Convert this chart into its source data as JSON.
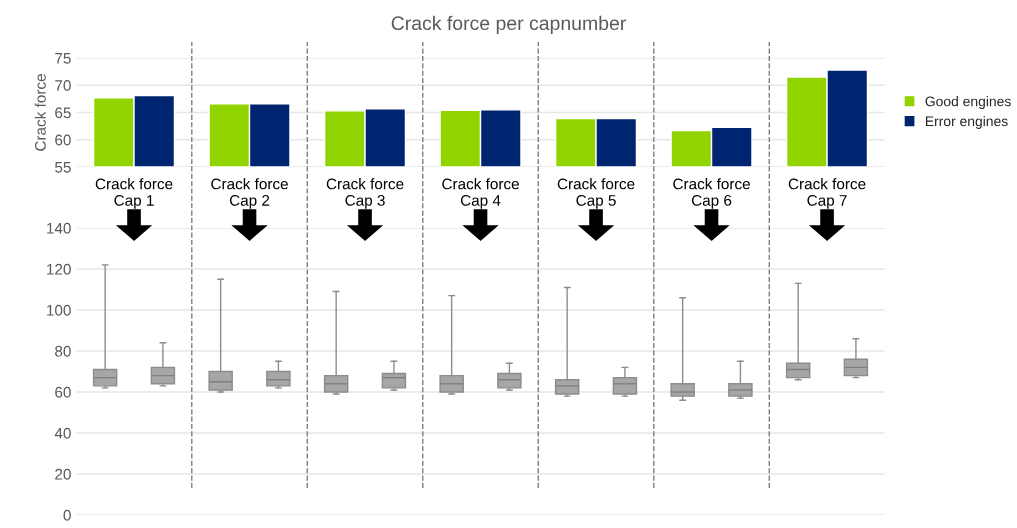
{
  "chart_data": [
    {
      "type": "bar",
      "title": "Crack force per capnumber",
      "ylabel": "Crack force",
      "categories": [
        "Crack force Cap 1",
        "Crack force Cap 2",
        "Crack force Cap 3",
        "Crack force Cap 4",
        "Crack force Cap 5",
        "Crack force Cap 6",
        "Crack force Cap 7"
      ],
      "series": [
        {
          "name": "Good engines",
          "color": "#92d400",
          "values": [
            67.7,
            66.6,
            65.3,
            65.4,
            63.9,
            61.7,
            71.5
          ]
        },
        {
          "name": "Error engines",
          "color": "#002570",
          "values": [
            68.1,
            66.6,
            65.7,
            65.5,
            63.9,
            62.3,
            72.8
          ]
        }
      ],
      "ylim": [
        55,
        75
      ],
      "yticks": [
        55,
        60,
        65,
        70,
        75
      ],
      "grid": "y",
      "legend": "right"
    },
    {
      "type": "box",
      "categories": [
        null,
        null,
        null,
        null,
        null,
        null,
        null,
        null,
        null,
        null,
        null,
        null,
        null,
        null
      ],
      "series": [
        {
          "color": "#a6a6a6",
          "boxes": [
            {
              "low": 62,
              "q1": 63,
              "median": 67,
              "q3": 71,
              "high": 122
            },
            {
              "low": 63,
              "q1": 64,
              "median": 68,
              "q3": 72,
              "high": 84
            },
            {
              "low": 60,
              "q1": 61,
              "median": 65,
              "q3": 70,
              "high": 115
            },
            {
              "low": 62,
              "q1": 63,
              "median": 66,
              "q3": 70,
              "high": 75
            },
            {
              "low": 59,
              "q1": 60,
              "median": 64,
              "q3": 68,
              "high": 109
            },
            {
              "low": 61,
              "q1": 62,
              "median": 67,
              "q3": 69,
              "high": 75
            },
            {
              "low": 59,
              "q1": 60,
              "median": 64,
              "q3": 68,
              "high": 107
            },
            {
              "low": 61,
              "q1": 62,
              "median": 66,
              "q3": 69,
              "high": 74
            },
            {
              "low": 58,
              "q1": 59,
              "median": 63,
              "q3": 66,
              "high": 111
            },
            {
              "low": 58,
              "q1": 59,
              "median": 64,
              "q3": 67,
              "high": 72
            },
            {
              "low": 56,
              "q1": 58,
              "median": 60,
              "q3": 64,
              "high": 106
            },
            {
              "low": 57,
              "q1": 58,
              "median": 61,
              "q3": 64,
              "high": 75
            },
            {
              "low": 66,
              "q1": 67,
              "median": 71,
              "q3": 74,
              "high": 113
            },
            {
              "low": 67,
              "q1": 68,
              "median": 72,
              "q3": 76,
              "high": 86
            }
          ]
        }
      ],
      "ylim": [
        0,
        140
      ],
      "yticks": [
        0,
        20,
        40,
        60,
        80,
        100,
        120,
        140
      ],
      "grid": "y"
    }
  ]
}
